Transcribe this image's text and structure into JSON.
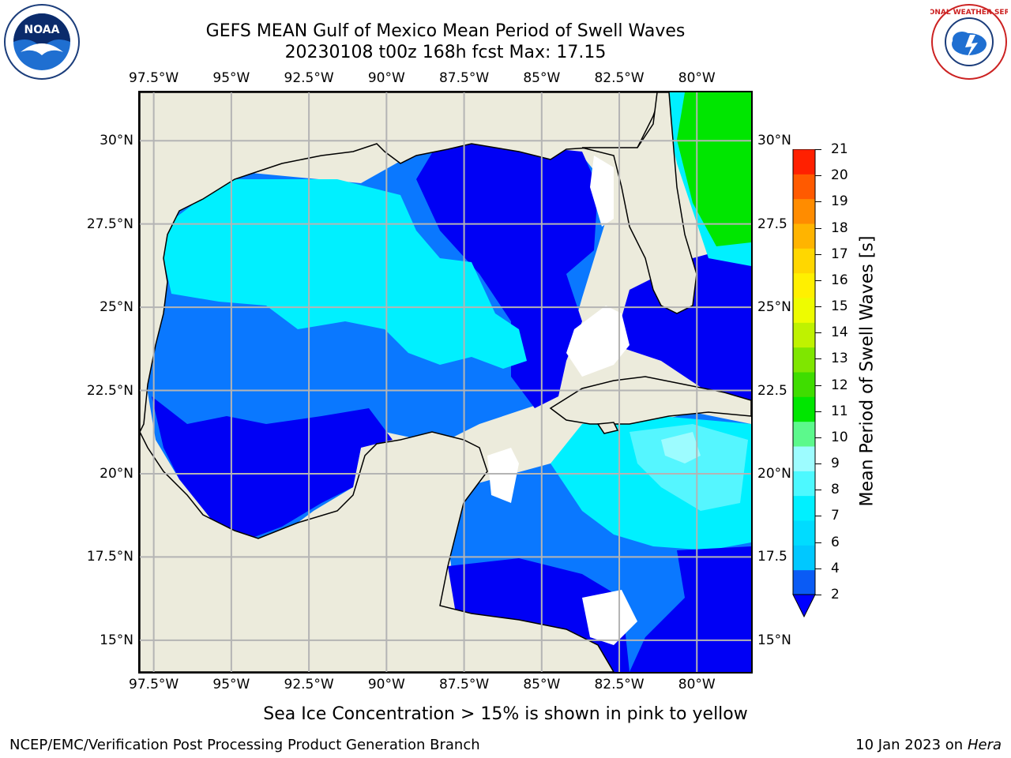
{
  "title": {
    "line1": "GEFS MEAN Gulf of Mexico Mean Period of Swell Waves",
    "line2": "20230108 t00z 168h fcst   Max: 17.15"
  },
  "map": {
    "lon_labels": [
      "97.5°W",
      "95°W",
      "92.5°W",
      "90°W",
      "87.5°W",
      "85°W",
      "82.5°W",
      "80°W"
    ],
    "lon_values": [
      -97.5,
      -95,
      -92.5,
      -90,
      -87.5,
      -85,
      -82.5,
      -80
    ],
    "lat_labels_left": [
      "30°N",
      "27.5°N",
      "25°N",
      "22.5°N",
      "20°N",
      "17.5°N",
      "15°N"
    ],
    "lat_labels_right": [
      "30°N",
      "27.5",
      "25°N",
      "22.5",
      "20°N",
      "17.5",
      "15°N"
    ],
    "lat_values": [
      30,
      27.5,
      25,
      22.5,
      20,
      17.5,
      15
    ],
    "lon_range": [
      -98,
      -78.2
    ],
    "lat_range": [
      14,
      31.5
    ],
    "grid": true,
    "land_color": "#ecebdc",
    "grid_color": "#b4b4b4"
  },
  "colorbar": {
    "label": "Mean Period of Swell Waves [s]",
    "ticks": [
      "21",
      "20",
      "19",
      "18",
      "17",
      "16",
      "15",
      "14",
      "13",
      "12",
      "11",
      "10",
      "9",
      "8",
      "7",
      "6",
      "4",
      "2"
    ],
    "levels": [
      2,
      4,
      5,
      6,
      7,
      8,
      9,
      10,
      11,
      12,
      13,
      14,
      15,
      16,
      17,
      18,
      19,
      20,
      21
    ],
    "colors": [
      "#0a5bf5",
      "#00c8ff",
      "#00dcff",
      "#00f0ff",
      "#4df9ff",
      "#9dfcff",
      "#5cf98c",
      "#00e600",
      "#3fdd00",
      "#7fe600",
      "#bff200",
      "#eefc00",
      "#fff000",
      "#ffd700",
      "#ffb400",
      "#ff8c00",
      "#ff5a00",
      "#ff2000"
    ],
    "under_color": "#0000ff"
  },
  "field_colors": {
    "p0_2": "#0000f5",
    "p2_4": "#0a78ff",
    "p4_6": "#00f0ff",
    "p6_8": "#55f6ff",
    "p8_9": "#9dfcff",
    "p10_12": "#00e600",
    "p12_14": "#bff200",
    "p14_16": "#fff000"
  },
  "caption": "Sea Ice Concentration > 15% is shown in pink to yellow",
  "footer": {
    "left": "NCEP/EMC/Verification Post Processing Product Generation Branch",
    "right_prefix": "10 Jan 2023 on ",
    "right_host": "Hera"
  },
  "logos": {
    "noaa_text": "NOAA",
    "nws_text": "NATIONAL WEATHER SERVICE"
  }
}
